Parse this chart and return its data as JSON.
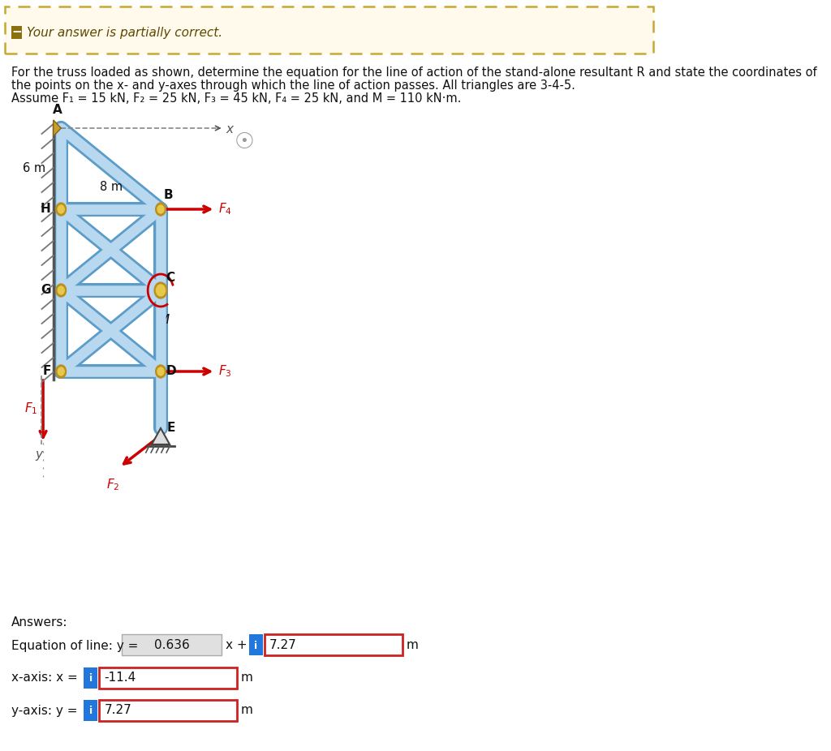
{
  "title_box_text": "Your answer is partially correct.",
  "problem_text_line1": "For the truss loaded as shown, determine the equation for the line of action of the stand-alone resultant R and state the coordinates of",
  "problem_text_line2": "the points on the x- and y-axes through which the line of action passes. All triangles are 3-4-5.",
  "problem_text_line3": "Assume F₁ = 15 kN, F₂ = 25 kN, F₃ = 45 kN, F₄ = 25 kN, and M = 110 kN·m.",
  "answers_label": "Answers:",
  "eq_label": "Equation of line: y = ",
  "eq_slope": "0.636",
  "eq_mid": "x + ",
  "eq_intercept": "7.27",
  "eq_unit": "m",
  "xaxis_label": "x-axis: x = ",
  "xaxis_value": "-11.4",
  "xaxis_unit": "m",
  "yaxis_label": "y-axis: y = ",
  "yaxis_value": "7.27",
  "yaxis_unit": "m",
  "truss_inner": "#B8D8F0",
  "truss_outer": "#5B9CC8",
  "arrow_color": "#CC0000",
  "node_color": "#C8A030",
  "bg_color": "#FFFFFF",
  "box_bg": "#FFFAEC",
  "box_border": "#C8A830",
  "info_icon_color": "#2277DD",
  "input_border_red": "#CC2222",
  "wall_line": "#555555",
  "wall_hatch": "#777777",
  "node_inner": "#E8C84A",
  "node_outer": "#B89020",
  "text_color": "#111111",
  "italic_color": "#5C4800",
  "x_label_color": "#555555",
  "dashed_color": "#888888"
}
